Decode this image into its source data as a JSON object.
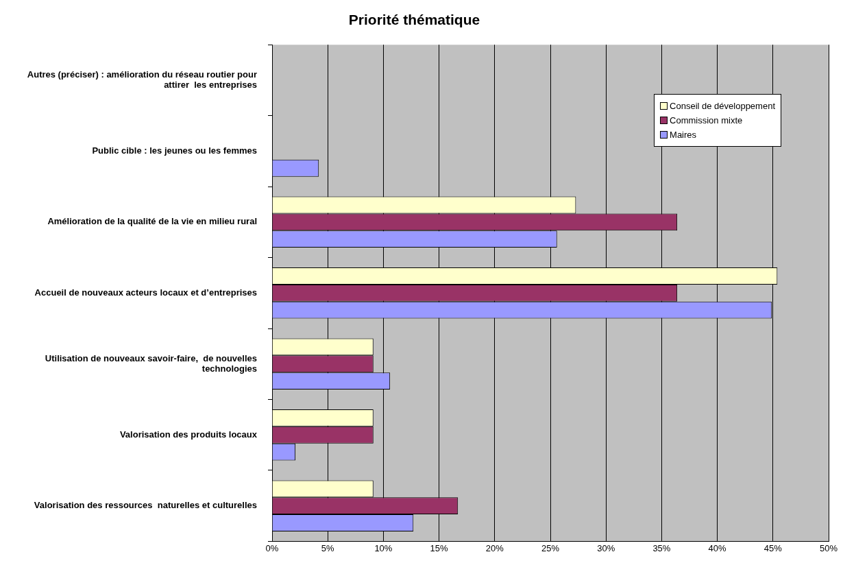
{
  "chart_data": {
    "type": "bar",
    "orientation": "horizontal",
    "title": "Priorité thématique",
    "categories": [
      "Autres (préciser) : amélioration du réseau routier pour attirer  les entreprises",
      "Public cible : les jeunes ou les femmes",
      "Amélioration de la qualité de la vie en milieu rural",
      "Accueil de nouveaux acteurs locaux et d’entreprises",
      "Utilisation de nouveaux savoir-faire,  de nouvelles technologies",
      "Valorisation des produits locaux",
      "Valorisation des ressources  naturelles et culturelles"
    ],
    "series": [
      {
        "name": "Conseil de développement",
        "color": "#ffffcc",
        "values": [
          0,
          0,
          27.3,
          45.4,
          9.1,
          9.1,
          9.1
        ]
      },
      {
        "name": "Commission mixte",
        "color": "#993366",
        "values": [
          0,
          0,
          36.4,
          36.4,
          9.1,
          9.1,
          16.7
        ]
      },
      {
        "name": "Maires",
        "color": "#9999ff",
        "values": [
          0,
          4.2,
          25.6,
          44.9,
          10.6,
          2.1,
          12.7
        ]
      }
    ],
    "xlim": [
      0,
      50
    ],
    "xticks": [
      {
        "value": 0,
        "label": "0%"
      },
      {
        "value": 5,
        "label": "5%"
      },
      {
        "value": 10,
        "label": "10%"
      },
      {
        "value": 15,
        "label": "15%"
      },
      {
        "value": 20,
        "label": "20%"
      },
      {
        "value": 25,
        "label": "25%"
      },
      {
        "value": 30,
        "label": "30%"
      },
      {
        "value": 35,
        "label": "35%"
      },
      {
        "value": 40,
        "label": "40%"
      },
      {
        "value": 45,
        "label": "45%"
      },
      {
        "value": 50,
        "label": "50%"
      }
    ],
    "grid": "x",
    "legend": "top right"
  }
}
